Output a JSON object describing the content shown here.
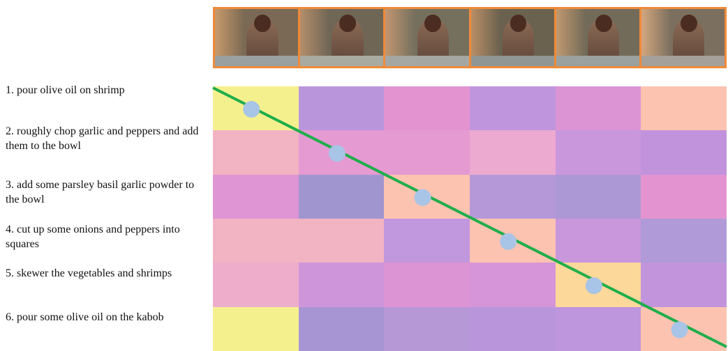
{
  "frames": [
    {
      "wall": "#7a6a55",
      "accent": "#c89a6a",
      "counter": "#9aa0a0"
    },
    {
      "wall": "#6f6656",
      "accent": "#b58e6a",
      "counter": "#a9aaa0"
    },
    {
      "wall": "#75705e",
      "accent": "#c29670",
      "counter": "#a4a7a2"
    },
    {
      "wall": "#6a624f",
      "accent": "#b98d66",
      "counter": "#8f9694"
    },
    {
      "wall": "#736b5a",
      "accent": "#c0996f",
      "counter": "#9aa19e"
    },
    {
      "wall": "#7b705f",
      "accent": "#d3a77e",
      "counter": "#a6a09a"
    }
  ],
  "steps": [
    "1. pour olive oil on shrimp",
    "2. roughly chop garlic and peppers and add them to the bowl",
    "3. add some parsley basil garlic powder to the bowl",
    "4. cut up some onions and peppers into squares",
    "5. skewer the vegetables and shrimps",
    "6. pour some olive oil on the kabob"
  ],
  "heatmap": [
    [
      "#f5f08e",
      "#b996dc",
      "#e394d0",
      "#bf95dd",
      "#dc94d5",
      "#fcc3b0"
    ],
    [
      "#f2b3c2",
      "#e59ad1",
      "#e59ad1",
      "#ecaad0",
      "#c997dc",
      "#c193dc"
    ],
    [
      "#df94d3",
      "#a195d0",
      "#fcc3b0",
      "#b598d8",
      "#ad98d6",
      "#e394d0"
    ],
    [
      "#f2b3c2",
      "#f2b3c2",
      "#c197dd",
      "#fcc3b0",
      "#c997dc",
      "#b09ad8"
    ],
    [
      "#eeaecb",
      "#cf95db",
      "#dc94d5",
      "#d695d8",
      "#fcd89a",
      "#c194dc"
    ],
    [
      "#f5f08e",
      "#a695d2",
      "#b798d7",
      "#b996dc",
      "#bd96dd",
      "#fcc3b0"
    ]
  ],
  "alignment": {
    "line_color": "#1fae4b",
    "dot_color": "#a8c4e6",
    "points": [
      [
        0,
        0
      ],
      [
        1,
        1
      ],
      [
        2,
        2
      ],
      [
        3,
        3
      ],
      [
        4,
        4
      ],
      [
        5,
        5
      ]
    ]
  }
}
